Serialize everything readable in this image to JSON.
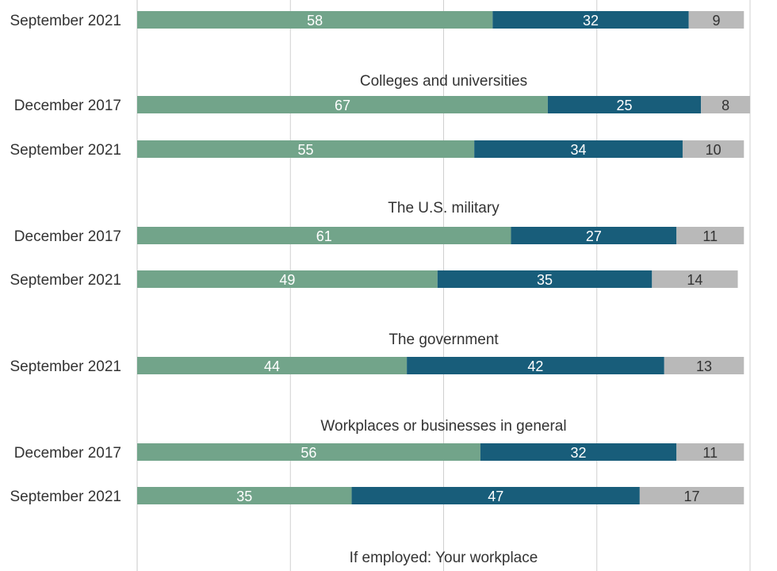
{
  "colors": {
    "segment1": "#72a48a",
    "segment2": "#185d7a",
    "segment3": "#b9b9b9",
    "label_on_segment1": "#ffffff",
    "label_on_segment2": "#ffffff",
    "label_on_segment3": "#333333"
  },
  "chart_data": {
    "type": "bar",
    "orientation": "horizontal-stacked",
    "xlim": [
      0,
      100
    ],
    "grid": true,
    "groups": [
      {
        "title": "",
        "rows": [
          {
            "label": "September 2021",
            "values": [
              58,
              32,
              9
            ]
          }
        ]
      },
      {
        "title": "Colleges and universities",
        "rows": [
          {
            "label": "December 2017",
            "values": [
              67,
              25,
              8
            ]
          },
          {
            "label": "September 2021",
            "values": [
              55,
              34,
              10
            ]
          }
        ]
      },
      {
        "title": "The U.S. military",
        "rows": [
          {
            "label": "December 2017",
            "values": [
              61,
              27,
              11
            ]
          },
          {
            "label": "September 2021",
            "values": [
              49,
              35,
              14
            ]
          }
        ]
      },
      {
        "title": "The government",
        "rows": [
          {
            "label": "September 2021",
            "values": [
              44,
              42,
              13
            ]
          }
        ]
      },
      {
        "title": "Workplaces or businesses in general",
        "rows": [
          {
            "label": "December 2017",
            "values": [
              56,
              32,
              11
            ]
          },
          {
            "label": "September 2021",
            "values": [
              35,
              47,
              17
            ]
          }
        ]
      },
      {
        "title": "If employed: Your workplace",
        "rows": []
      }
    ]
  }
}
